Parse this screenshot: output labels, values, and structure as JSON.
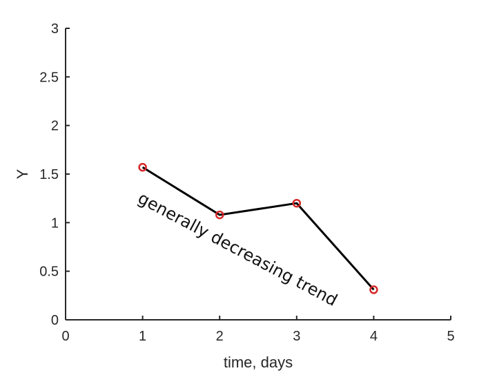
{
  "chart_data": {
    "type": "line",
    "title": "",
    "xlabel": "time, days",
    "ylabel": "Y",
    "xlim": [
      0,
      5
    ],
    "ylim": [
      0,
      3
    ],
    "x_ticks": [
      "0",
      "1",
      "2",
      "3",
      "4",
      "5"
    ],
    "y_ticks": [
      "0",
      "0.5",
      "1",
      "1.5",
      "2",
      "2.5",
      "3"
    ],
    "grid": false,
    "series": [
      {
        "x": [
          1,
          2,
          3,
          4
        ],
        "y": [
          1.57,
          1.08,
          1.2,
          0.31
        ],
        "line_color": "#000000",
        "marker": "circle",
        "marker_color": "#d62728"
      }
    ],
    "annotations": [
      {
        "text": "generally decreasing trend"
      }
    ]
  }
}
